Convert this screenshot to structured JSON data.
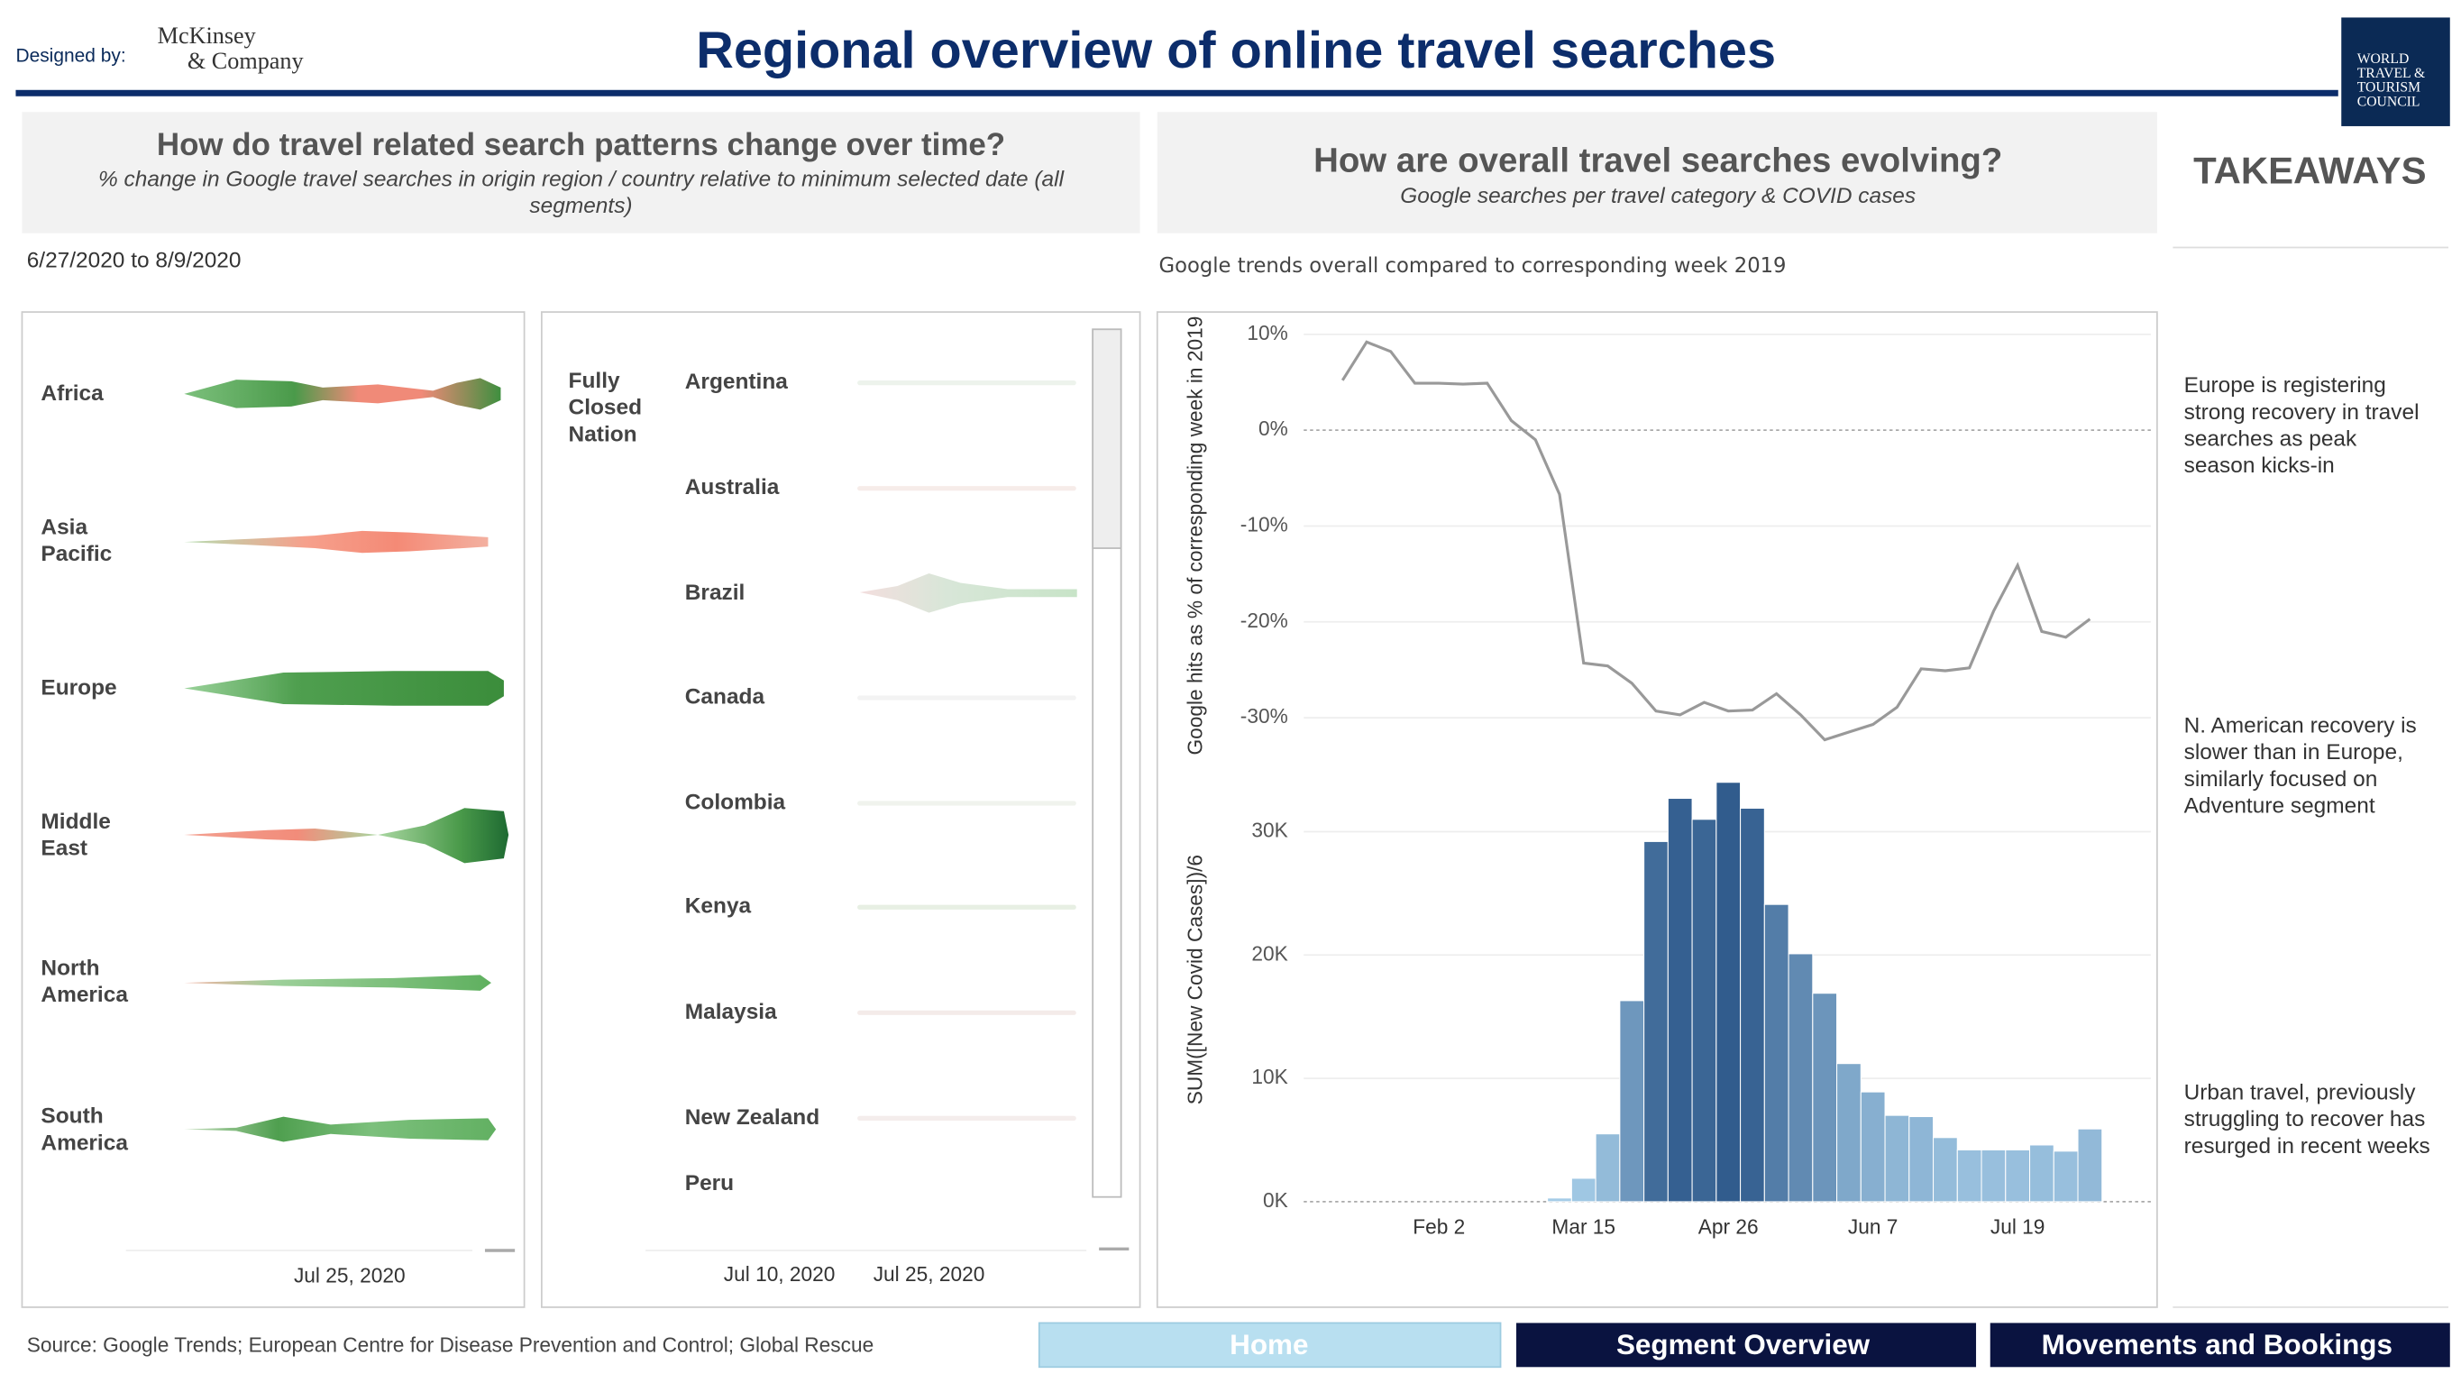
{
  "header": {
    "designed_by": "Designed by:",
    "company": [
      "McKinsey",
      "& Company"
    ],
    "title": "Regional overview of online travel searches",
    "logo": [
      "WORLD",
      "TRAVEL &",
      "TOURISM",
      "COUNCIL"
    ]
  },
  "left_panel": {
    "title": "How do travel related search patterns change over time?",
    "subtitle": "% change in Google travel searches in origin region / country relative to minimum selected date (all segments)",
    "date_range": "6/27/2020 to 8/9/2020",
    "regions": [
      "Africa",
      "Asia Pacific",
      "Europe",
      "Middle East",
      "North America",
      "South America"
    ],
    "region_axis_label": "Jul 25, 2020",
    "group": "Fully Closed Nation",
    "countries": [
      "Argentina",
      "Australia",
      "Brazil",
      "Canada",
      "Colombia",
      "Kenya",
      "Malaysia",
      "New Zealand",
      "Peru"
    ],
    "country_axis_labels": [
      "Jul 10, 2020",
      "Jul 25, 2020"
    ]
  },
  "right_panel": {
    "title": "How are overall travel searches evolving?",
    "subtitle": "Google searches per travel category & COVID cases",
    "note": "Google trends overall compared to corresponding week 2019"
  },
  "takeaways": {
    "title": "TAKEAWAYS",
    "items": [
      "Europe is registering strong recovery in travel searches as peak season kicks-in",
      "N. American recovery is slower than in Europe, similarly focused on Adventure segment",
      "Urban travel, previously struggling to recover has resurged in recent weeks"
    ]
  },
  "source": "Source: Google Trends; European Centre for Disease Prevention and Control; Global Rescue",
  "nav": [
    "Home",
    "Segment Overview",
    "Movements and Bookings"
  ],
  "chart_data": {
    "type": "combo",
    "categories": [
      null,
      null,
      null,
      null,
      "Feb 2",
      null,
      null,
      null,
      null,
      null,
      "Mar 15",
      null,
      null,
      null,
      null,
      null,
      "Apr 26",
      null,
      null,
      null,
      null,
      null,
      "Jun 7",
      null,
      null,
      null,
      null,
      null,
      "Jul 19",
      null,
      null,
      null
    ],
    "grid": true,
    "panels": [
      {
        "type": "line",
        "ylabel": "Google hits as % of corresponding week in 2019",
        "color": "#999999",
        "ylim": [
          -34,
          12
        ],
        "yticks": [
          {
            "value": -30,
            "label": "-30%"
          },
          {
            "value": -20,
            "label": "-20%"
          },
          {
            "value": -10,
            "label": "-10%"
          },
          {
            "value": 0,
            "label": "0%"
          },
          {
            "value": 10,
            "label": "10%"
          }
        ],
        "values": [
          5.2,
          9.2,
          8.2,
          4.9,
          4.9,
          4.8,
          4.9,
          1.0,
          -1.0,
          -6.7,
          -24.3,
          -24.6,
          -26.4,
          -29.3,
          -29.7,
          -28.4,
          -29.3,
          -29.2,
          -27.5,
          -29.7,
          -32.3,
          -31.5,
          -30.7,
          -28.9,
          -24.9,
          -25.1,
          -24.8,
          -18.9,
          -14.1,
          -21.0,
          -21.6,
          -19.7
        ]
      },
      {
        "type": "bar",
        "ylabel": "SUM([New Covid Cases])/6",
        "color_range": [
          "#a6cde8",
          "#2a5588"
        ],
        "ylim": [
          0,
          36000
        ],
        "yticks": [
          {
            "value": 0,
            "label": "0K"
          },
          {
            "value": 10000,
            "label": "10K"
          },
          {
            "value": 20000,
            "label": "20K"
          },
          {
            "value": 30000,
            "label": "30K"
          }
        ],
        "values": [
          0,
          0,
          0,
          0,
          0,
          0,
          0,
          0,
          0,
          300,
          1900,
          5500,
          16300,
          29200,
          32700,
          31000,
          34000,
          31900,
          24100,
          20100,
          16900,
          11200,
          8900,
          7000,
          6900,
          5200,
          4200,
          4200,
          4200,
          4600,
          4100,
          5900
        ]
      }
    ]
  }
}
